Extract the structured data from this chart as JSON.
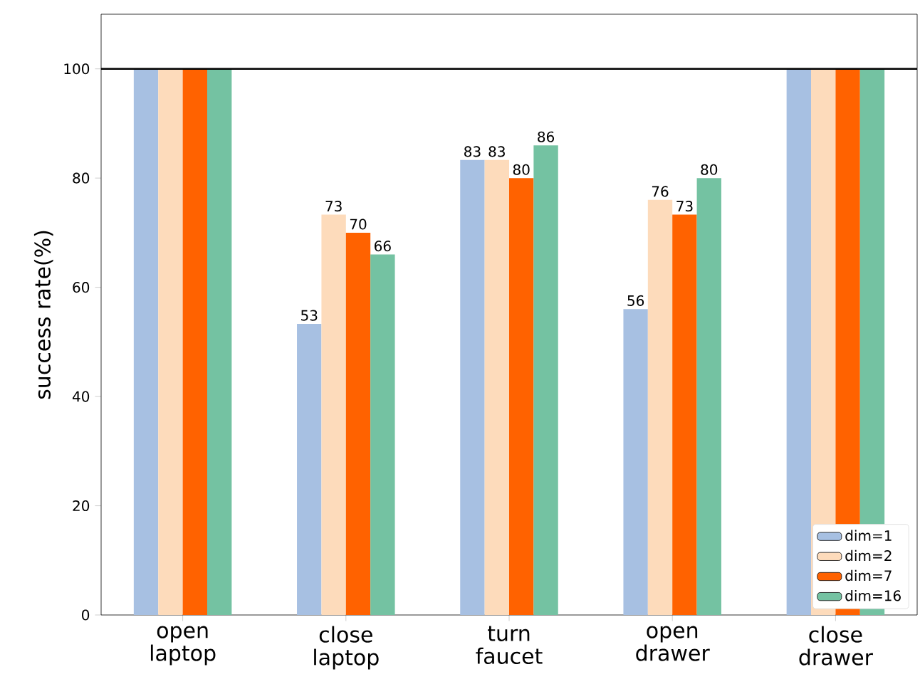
{
  "chart_data": {
    "type": "bar",
    "ylabel": "success rate(%)",
    "categories": [
      "open laptop",
      "close laptop",
      "turn faucet",
      "open drawer",
      "close drawer"
    ],
    "series": [
      {
        "name": "dim=1",
        "color": "#a7c0e2",
        "values": [
          100,
          53.3,
          83.3,
          56,
          100
        ],
        "value_labels": [
          null,
          "53",
          "83",
          "56",
          null
        ]
      },
      {
        "name": "dim=2",
        "color": "#fddbbb",
        "values": [
          100,
          73.3,
          83.3,
          76,
          100
        ],
        "value_labels": [
          null,
          "73",
          "83",
          "76",
          null
        ]
      },
      {
        "name": "dim=7",
        "color": "#ff6200",
        "values": [
          100,
          70,
          80,
          73.3,
          100
        ],
        "value_labels": [
          null,
          "70",
          "80",
          "73",
          null
        ]
      },
      {
        "name": "dim=16",
        "color": "#74c2a2",
        "values": [
          100,
          66,
          86,
          80,
          100
        ],
        "value_labels": [
          null,
          "66",
          "86",
          "80",
          null
        ]
      }
    ],
    "ylim": [
      0,
      110
    ],
    "yticks": [
      0,
      20,
      40,
      60,
      80,
      100
    ],
    "ref_lines": [
      {
        "axis": "y",
        "value": 100,
        "color": "#000000"
      }
    ],
    "legend": "bottom right",
    "grid": false
  }
}
